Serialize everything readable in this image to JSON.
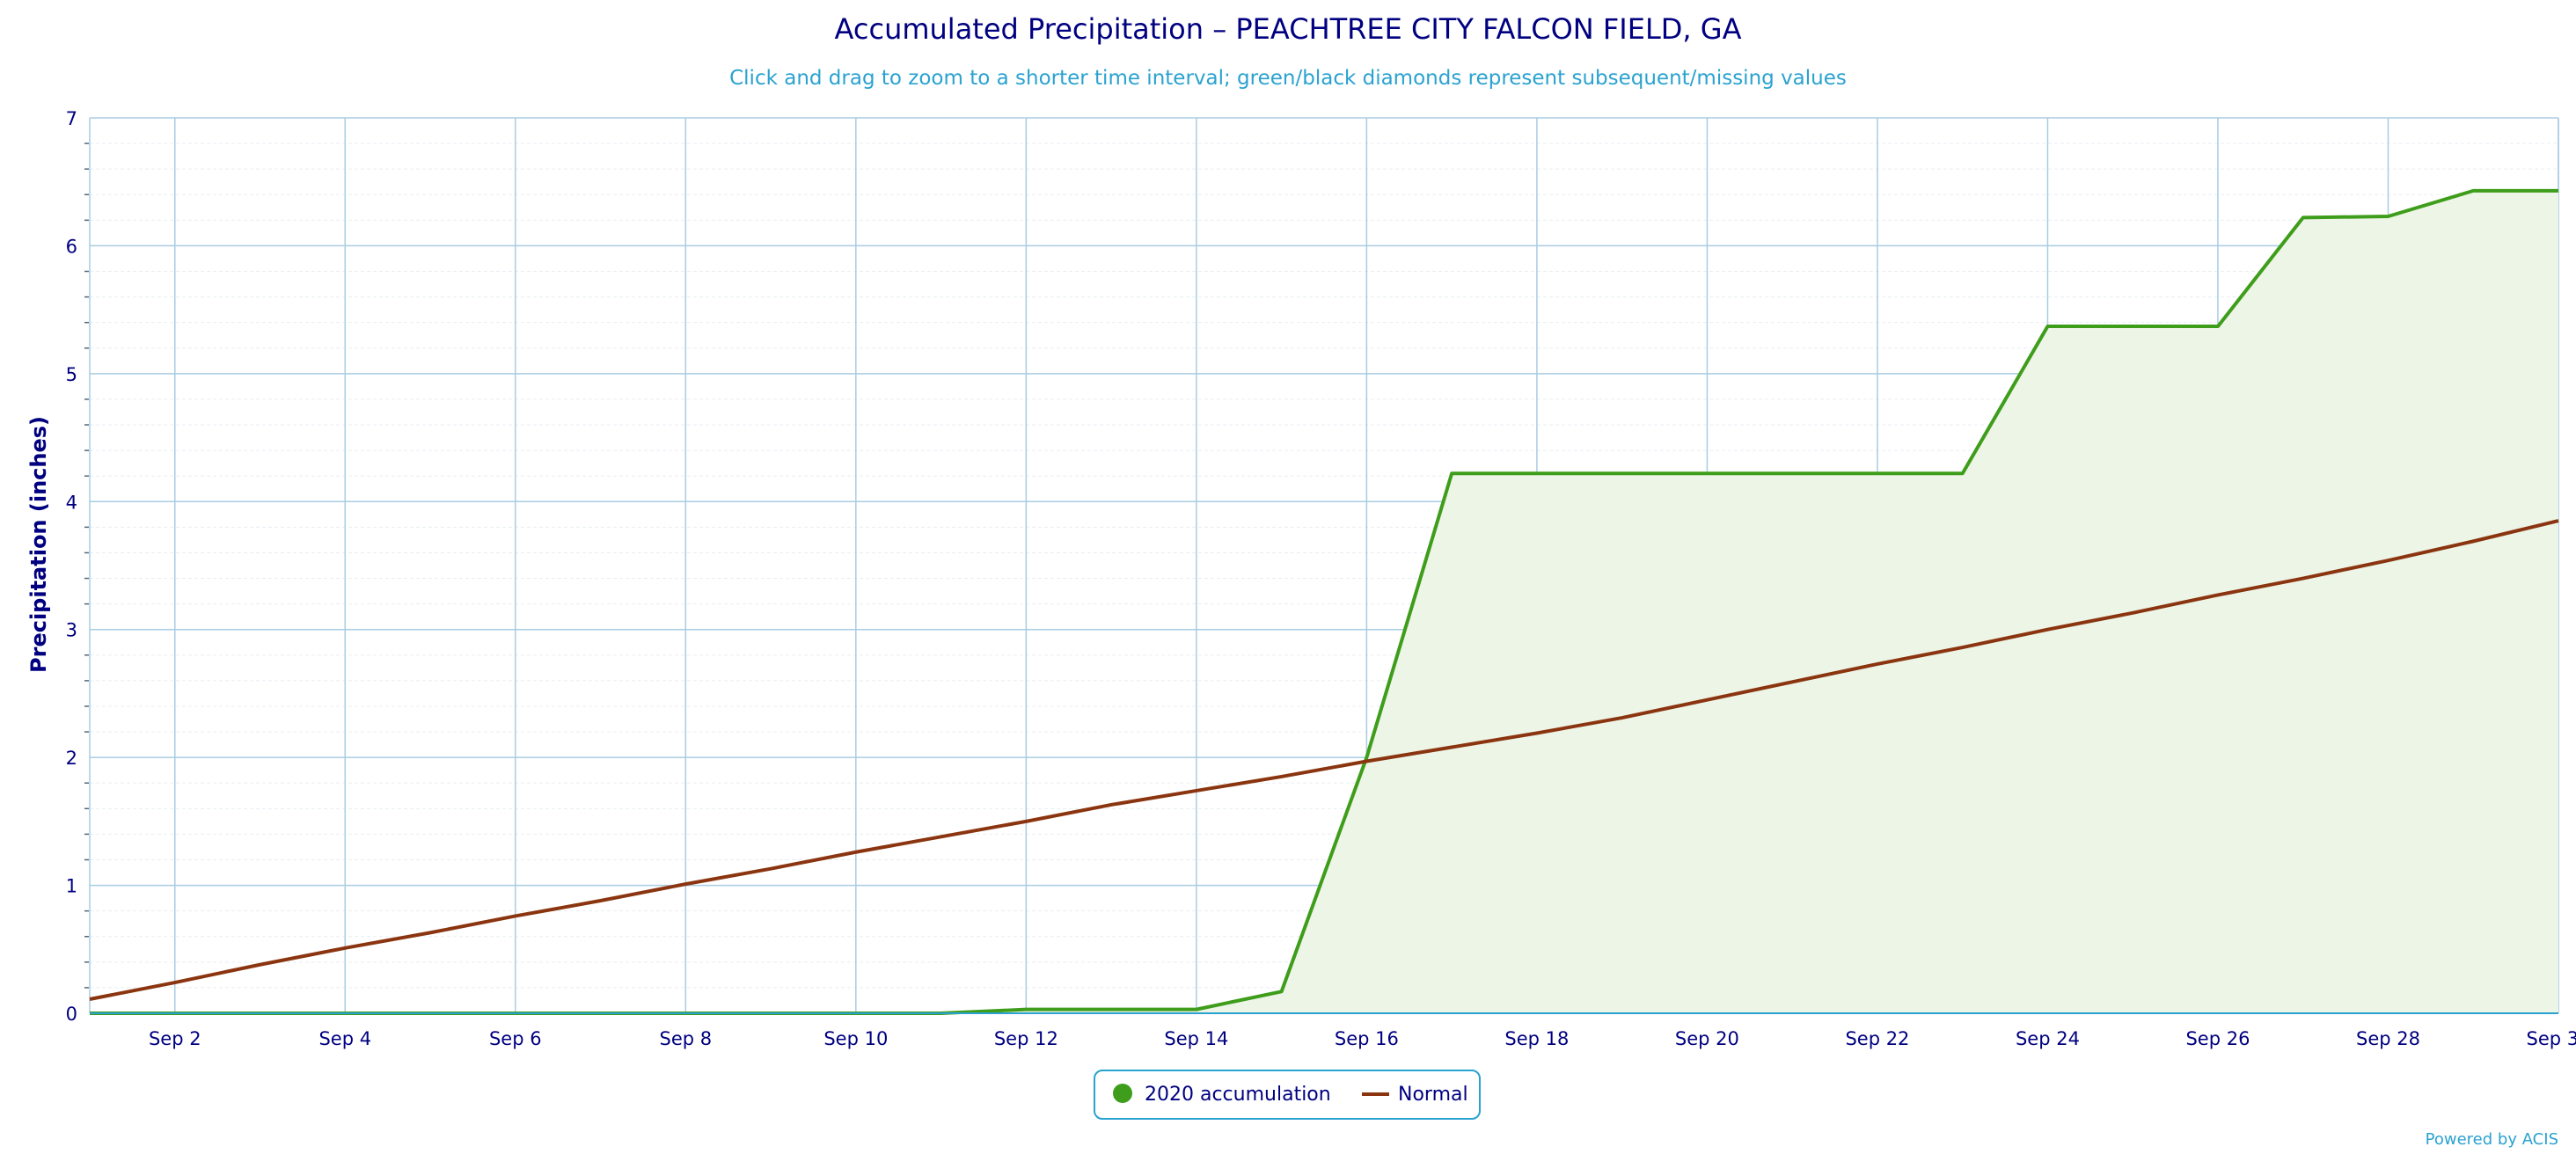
{
  "chart_data": {
    "type": "line",
    "title": "Accumulated Precipitation – PEACHTREE CITY FALCON FIELD, GA",
    "subtitle": "Click and drag to zoom to a shorter time interval; green/black diamonds represent subsequent/missing values",
    "ylabel": "Precipitation (inches)",
    "xlabel": "",
    "ylim": [
      0,
      7
    ],
    "yticks": [
      "0",
      "1",
      "2",
      "3",
      "4",
      "5",
      "6",
      "7"
    ],
    "xlim": [
      1,
      30
    ],
    "xtick_days": [
      2,
      4,
      6,
      8,
      10,
      12,
      14,
      16,
      18,
      20,
      22,
      24,
      26,
      28,
      30
    ],
    "xticks": [
      "Sep 2",
      "Sep 4",
      "Sep 6",
      "Sep 8",
      "Sep 10",
      "Sep 12",
      "Sep 14",
      "Sep 16",
      "Sep 18",
      "Sep 20",
      "Sep 22",
      "Sep 24",
      "Sep 26",
      "Sep 28",
      "Sep 30"
    ],
    "grid": true,
    "legend_position": "bottom-center",
    "series": [
      {
        "name": "2020 accumulation",
        "color": "#3e9d1a",
        "area_fill": "#edf5e7",
        "x": [
          1,
          2,
          3,
          4,
          5,
          6,
          7,
          8,
          9,
          10,
          11,
          12,
          13,
          14,
          15,
          16,
          17,
          18,
          19,
          20,
          21,
          22,
          23,
          24,
          25,
          26,
          27,
          28,
          29,
          30
        ],
        "values": [
          0,
          0,
          0,
          0,
          0,
          0,
          0,
          0,
          0,
          0,
          0,
          0.03,
          0.03,
          0.03,
          0.17,
          2.0,
          4.22,
          4.22,
          4.22,
          4.22,
          4.22,
          4.22,
          4.22,
          5.37,
          5.37,
          5.37,
          6.22,
          6.23,
          6.43,
          6.43
        ]
      },
      {
        "name": "Normal",
        "color": "#8b3510",
        "x": [
          1,
          2,
          3,
          4,
          5,
          6,
          7,
          8,
          9,
          10,
          11,
          12,
          13,
          14,
          15,
          16,
          17,
          18,
          19,
          20,
          21,
          22,
          23,
          24,
          25,
          26,
          27,
          28,
          29,
          30
        ],
        "values": [
          0.11,
          0.24,
          0.38,
          0.51,
          0.63,
          0.76,
          0.88,
          1.01,
          1.13,
          1.26,
          1.38,
          1.5,
          1.63,
          1.74,
          1.85,
          1.97,
          2.08,
          2.19,
          2.31,
          2.45,
          2.59,
          2.73,
          2.86,
          3.0,
          3.13,
          3.27,
          3.4,
          3.54,
          3.69,
          3.85
        ]
      }
    ]
  },
  "legend": {
    "items": [
      "2020 accumulation",
      "Normal"
    ]
  },
  "credit": "Powered by ACIS"
}
